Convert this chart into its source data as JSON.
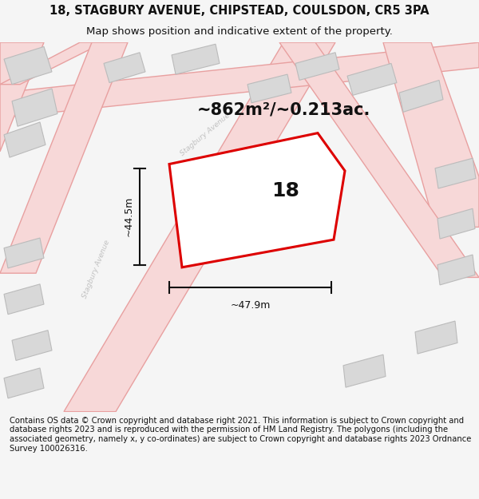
{
  "title": "18, STAGBURY AVENUE, CHIPSTEAD, COULSDON, CR5 3PA",
  "subtitle": "Map shows position and indicative extent of the property.",
  "footer": "Contains OS data © Crown copyright and database right 2021. This information is subject to Crown copyright and database rights 2023 and is reproduced with the permission of HM Land Registry. The polygons (including the associated geometry, namely x, y co-ordinates) are subject to Crown copyright and database rights 2023 Ordnance Survey 100026316.",
  "area_label": "~862m²/~0.213ac.",
  "number_label": "18",
  "width_label": "~47.9m",
  "height_label": "~44.5m",
  "bg_color": "#f5f5f5",
  "map_bg": "#ffffff",
  "road_fill": "#f7d8d8",
  "road_edge": "#e8a0a0",
  "building_fill": "#d8d8d8",
  "building_edge": "#bbbbbb",
  "plot_color": "#dd0000",
  "plot_fill": "#ffffff",
  "dim_color": "#111111",
  "street_label_color": "#bbbbbb",
  "title_fontsize": 10.5,
  "subtitle_fontsize": 9.5,
  "footer_fontsize": 7.2,
  "area_fontsize": 15,
  "num_fontsize": 18,
  "dim_fontsize": 9
}
